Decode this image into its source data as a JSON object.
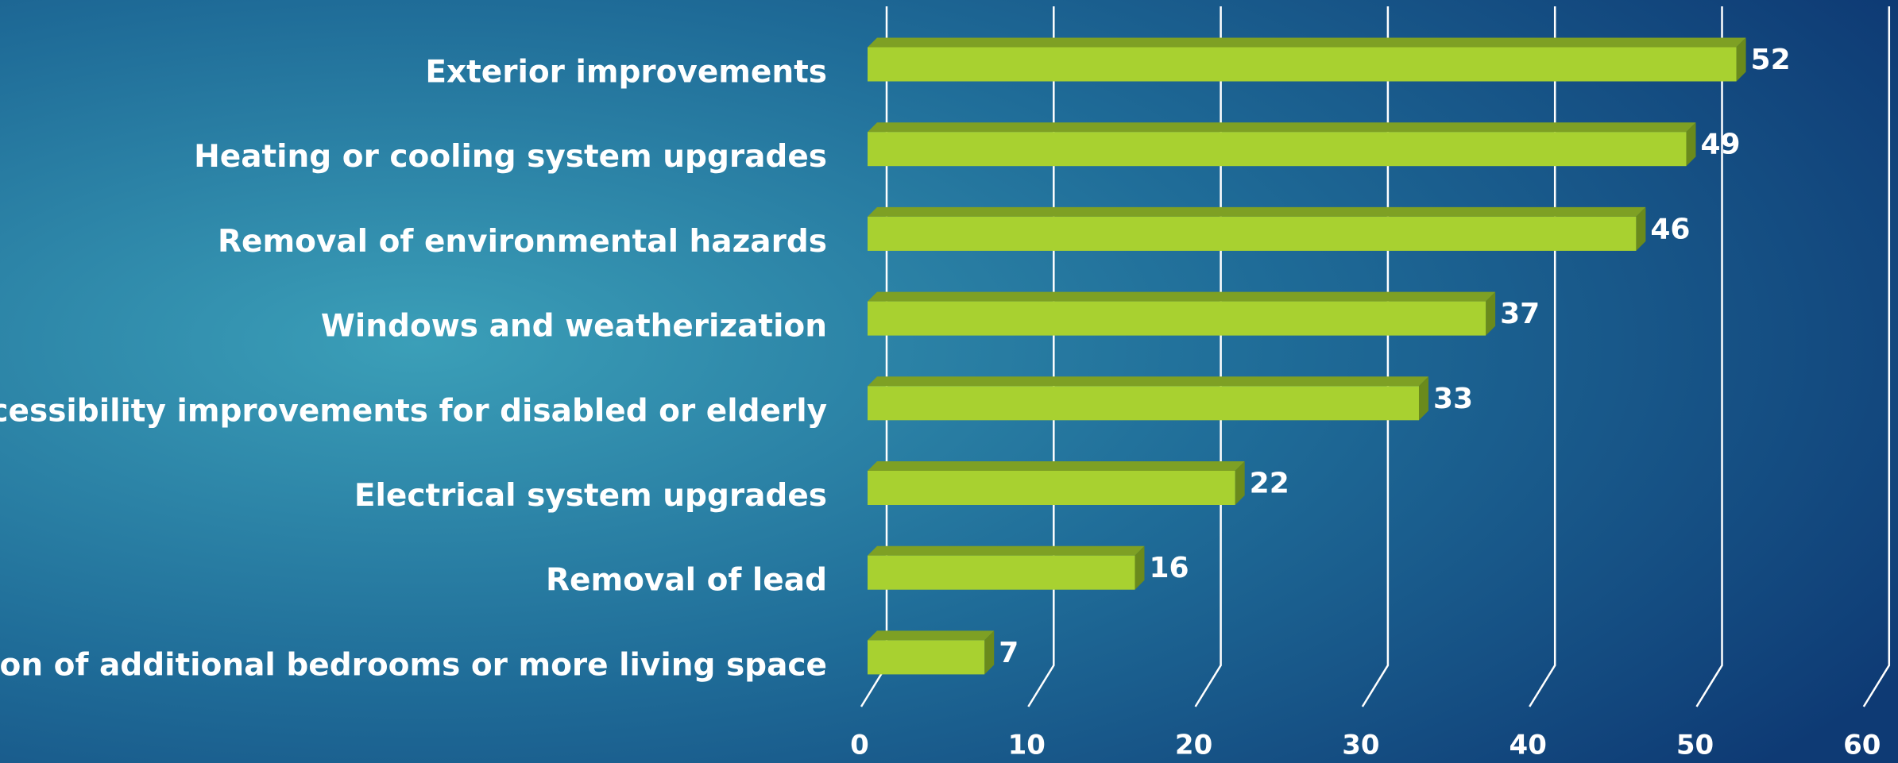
{
  "chart_data": {
    "type": "bar",
    "orientation": "horizontal",
    "categories": [
      "Exterior improvements",
      "Heating or cooling system upgrades",
      "Removal of environmental hazards",
      "Windows and weatherization",
      "Accessibility improvements for disabled or elderly",
      "Electrical system upgrades",
      "Removal of lead",
      "Creation of additional bedrooms or more living space"
    ],
    "values": [
      52,
      49,
      46,
      37,
      33,
      22,
      16,
      7
    ],
    "color": "#a8d130",
    "xlim": [
      0,
      60
    ],
    "xticks": [
      0,
      10,
      20,
      30,
      40,
      50,
      60
    ],
    "grid": true
  }
}
